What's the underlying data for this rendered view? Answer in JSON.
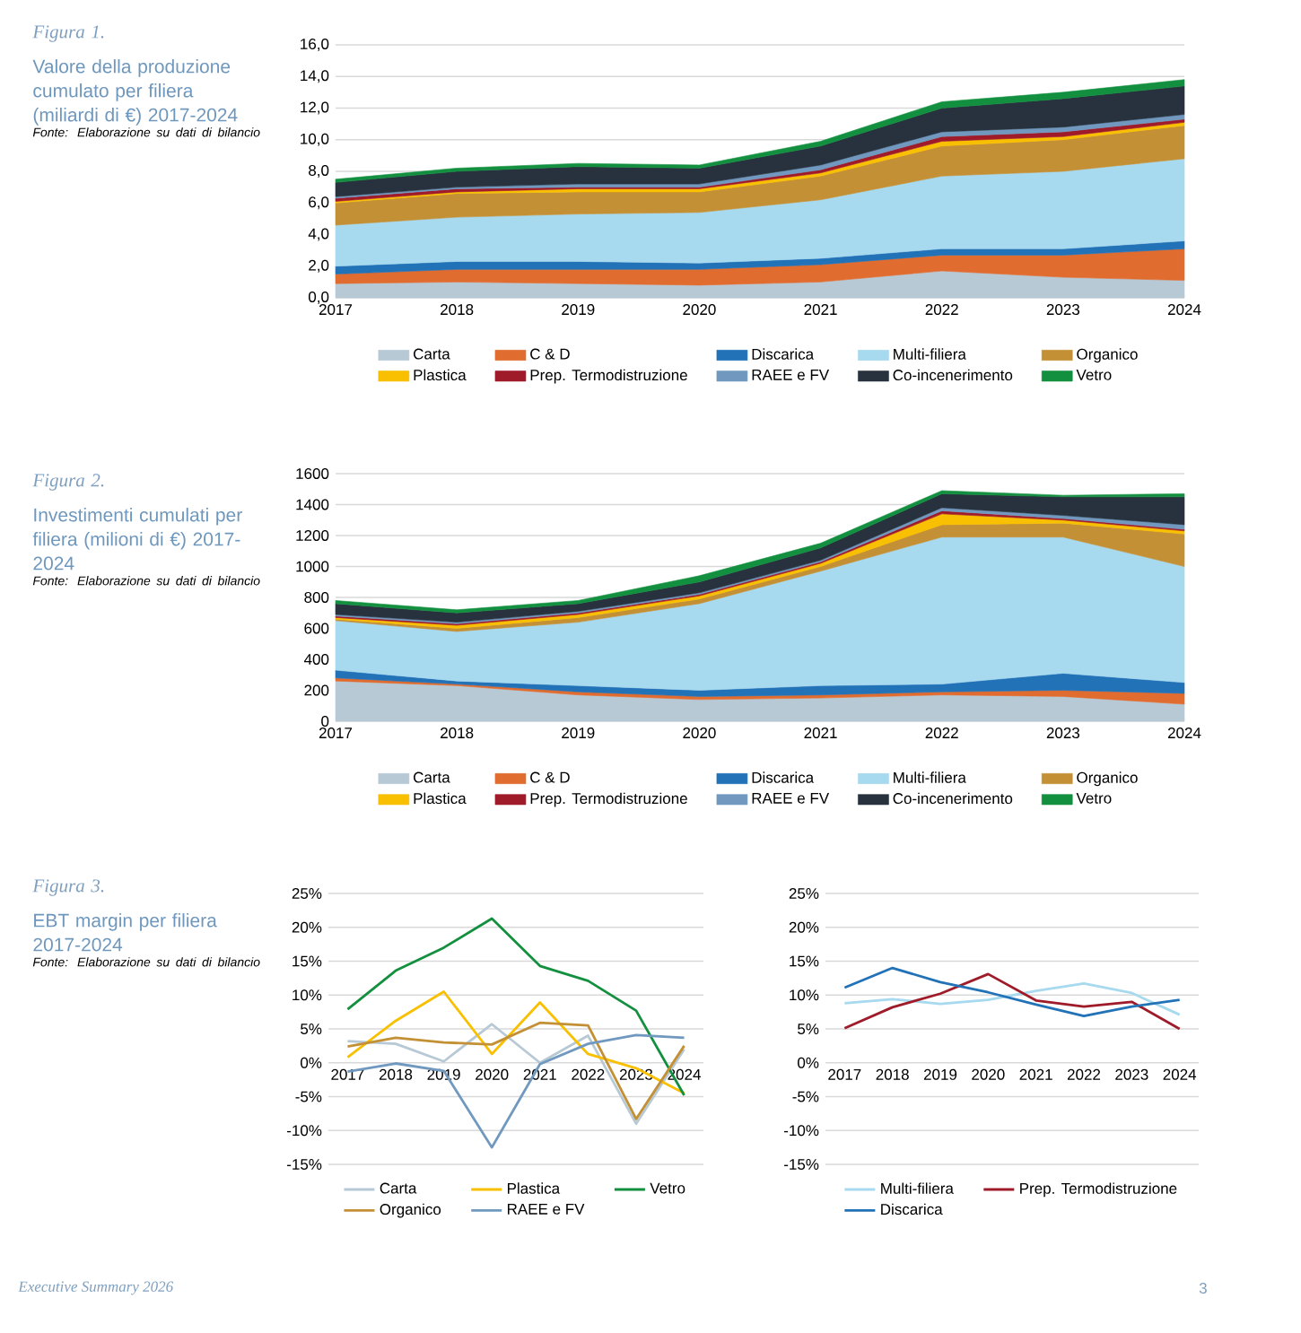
{
  "chart_data": [
    {
      "type": "area",
      "stacked": true,
      "title": "Valore della produzione cumulato per filiera (miliardi di €)  2017-2024",
      "annotations": [
        "Figura 1.",
        "Fonte: Elaborazione su dati di bilancio"
      ],
      "categories": [
        "2017",
        "2018",
        "2019",
        "2020",
        "2021",
        "2022",
        "2023",
        "2024"
      ],
      "ylim": [
        0,
        16
      ],
      "yticks": [
        {
          "value": 0,
          "label": "0,0"
        },
        {
          "value": 2,
          "label": "2,0"
        },
        {
          "value": 4,
          "label": "4,0"
        },
        {
          "value": 6,
          "label": "6,0"
        },
        {
          "value": 8,
          "label": "8,0"
        },
        {
          "value": 10,
          "label": "10,0"
        },
        {
          "value": 12,
          "label": "12,0"
        },
        {
          "value": 14,
          "label": "14,0"
        },
        {
          "value": 16,
          "label": "16,0"
        }
      ],
      "grid": "y",
      "legend": "bottom",
      "series": [
        {
          "name": "Carta",
          "color": "#b8c9d6",
          "values": [
            0.9,
            1.0,
            0.9,
            0.8,
            1.0,
            1.7,
            1.3,
            1.1
          ]
        },
        {
          "name": "C & D",
          "color": "#e06c2f",
          "values": [
            0.6,
            0.8,
            0.9,
            1.0,
            1.1,
            1.0,
            1.4,
            2.0
          ]
        },
        {
          "name": "Discarica",
          "color": "#2272b8",
          "values": [
            0.5,
            0.5,
            0.5,
            0.4,
            0.4,
            0.4,
            0.4,
            0.5
          ]
        },
        {
          "name": "Multi-filiera",
          "color": "#a7d9ef",
          "values": [
            2.6,
            2.8,
            3.0,
            3.2,
            3.7,
            4.6,
            4.9,
            5.2
          ]
        },
        {
          "name": "Organico",
          "color": "#c49035",
          "values": [
            1.4,
            1.5,
            1.4,
            1.3,
            1.5,
            1.9,
            2.0,
            2.1
          ]
        },
        {
          "name": "Plastica",
          "color": "#f8c000",
          "values": [
            0.1,
            0.1,
            0.2,
            0.2,
            0.2,
            0.3,
            0.2,
            0.2
          ]
        },
        {
          "name": "Prep. Termodistruzione",
          "color": "#a01b2a",
          "values": [
            0.2,
            0.2,
            0.1,
            0.1,
            0.2,
            0.3,
            0.3,
            0.2
          ]
        },
        {
          "name": "RAEE e FV",
          "color": "#7199bf",
          "values": [
            0.1,
            0.1,
            0.2,
            0.2,
            0.3,
            0.3,
            0.3,
            0.3
          ]
        },
        {
          "name": "Co-incenerimento",
          "color": "#27323e",
          "values": [
            0.9,
            1.0,
            1.1,
            1.0,
            1.2,
            1.5,
            1.8,
            1.8
          ]
        },
        {
          "name": "Vetro",
          "color": "#13903f",
          "values": [
            0.2,
            0.2,
            0.2,
            0.2,
            0.3,
            0.4,
            0.4,
            0.4
          ]
        }
      ]
    },
    {
      "type": "area",
      "stacked": true,
      "title": "Investimenti cumulati per filiera (milioni di €) 2017-2024",
      "annotations": [
        "Figura 2.",
        "Fonte: Elaborazione su dati di bilancio"
      ],
      "categories": [
        "2017",
        "2018",
        "2019",
        "2020",
        "2021",
        "2022",
        "2023",
        "2024"
      ],
      "ylim": [
        0,
        1600
      ],
      "yticks": [
        0,
        200,
        400,
        600,
        800,
        1000,
        1200,
        1400,
        1600
      ],
      "grid": "y",
      "legend": "bottom",
      "series": [
        {
          "name": "Carta",
          "color": "#b8c9d6",
          "values": [
            260,
            230,
            170,
            140,
            150,
            170,
            160,
            110
          ]
        },
        {
          "name": "C & D",
          "color": "#e06c2f",
          "values": [
            20,
            10,
            20,
            20,
            20,
            20,
            40,
            70
          ]
        },
        {
          "name": "Discarica",
          "color": "#2272b8",
          "values": [
            50,
            20,
            40,
            40,
            60,
            50,
            110,
            70
          ]
        },
        {
          "name": "Multi-filiera",
          "color": "#a7d9ef",
          "values": [
            320,
            320,
            410,
            560,
            740,
            950,
            880,
            750
          ]
        },
        {
          "name": "Organico",
          "color": "#c49035",
          "values": [
            10,
            20,
            30,
            30,
            30,
            80,
            90,
            210
          ]
        },
        {
          "name": "Plastica",
          "color": "#f8c000",
          "values": [
            10,
            20,
            20,
            20,
            20,
            70,
            20,
            20
          ]
        },
        {
          "name": "Prep. Termodistruzione",
          "color": "#a01b2a",
          "values": [
            10,
            10,
            10,
            10,
            10,
            20,
            10,
            10
          ]
        },
        {
          "name": "RAEE e FV",
          "color": "#7199bf",
          "values": [
            10,
            10,
            10,
            10,
            10,
            20,
            20,
            30
          ]
        },
        {
          "name": "Co-incenerimento",
          "color": "#27323e",
          "values": [
            70,
            60,
            50,
            70,
            80,
            90,
            120,
            180
          ]
        },
        {
          "name": "Vetro",
          "color": "#13903f",
          "values": [
            20,
            20,
            20,
            40,
            30,
            20,
            10,
            20
          ]
        }
      ]
    },
    {
      "type": "line",
      "title": "EBT margin per filiera 2017-2024",
      "annotations": [
        "Figura 3.",
        "Fonte: Elaborazione su dati di bilancio"
      ],
      "categories": [
        "2017",
        "2018",
        "2019",
        "2020",
        "2021",
        "2022",
        "2023",
        "2024"
      ],
      "ylim": [
        -15,
        25
      ],
      "yticks": [
        {
          "value": -15,
          "label": "-15%"
        },
        {
          "value": -10,
          "label": "-10%"
        },
        {
          "value": -5,
          "label": "-5%"
        },
        {
          "value": 0,
          "label": "0%"
        },
        {
          "value": 5,
          "label": "5%"
        },
        {
          "value": 10,
          "label": "10%"
        },
        {
          "value": 15,
          "label": "15%"
        },
        {
          "value": 20,
          "label": "20%"
        },
        {
          "value": 25,
          "label": "25%"
        }
      ],
      "grid": "y",
      "legend": "bottom",
      "line_style": "solid",
      "series": [
        {
          "name": "Carta",
          "color": "#b8c9d6",
          "values": [
            3.2,
            2.8,
            0.2,
            5.7,
            0.0,
            4.0,
            -9.0,
            2.0
          ]
        },
        {
          "name": "Plastica",
          "color": "#f8c000",
          "values": [
            0.8,
            6.2,
            10.5,
            1.3,
            8.9,
            1.3,
            -0.8,
            -4.5
          ]
        },
        {
          "name": "Vetro",
          "color": "#13903f",
          "values": [
            7.9,
            13.6,
            17.0,
            21.3,
            14.3,
            12.1,
            7.7,
            -4.8
          ]
        },
        {
          "name": "Organico",
          "color": "#c49035",
          "values": [
            2.4,
            3.7,
            3.0,
            2.7,
            5.9,
            5.5,
            -8.3,
            2.5
          ]
        },
        {
          "name": "RAEE e FV",
          "color": "#7199bf",
          "values": [
            -1.3,
            -0.1,
            -1.2,
            -12.5,
            -0.2,
            2.8,
            4.1,
            3.7
          ]
        }
      ]
    },
    {
      "type": "line",
      "annotations": [
        "Executive Summary 2026",
        "3"
      ],
      "categories": [
        "2017",
        "2018",
        "2019",
        "2020",
        "2021",
        "2022",
        "2023",
        "2024"
      ],
      "ylim": [
        -15,
        25
      ],
      "yticks": [
        {
          "value": -15,
          "label": "-15%"
        },
        {
          "value": -10,
          "label": "-10%"
        },
        {
          "value": -5,
          "label": "-5%"
        },
        {
          "value": 0,
          "label": "0%"
        },
        {
          "value": 5,
          "label": "5%"
        },
        {
          "value": 10,
          "label": "10%"
        },
        {
          "value": 15,
          "label": "15%"
        },
        {
          "value": 20,
          "label": "20%"
        },
        {
          "value": 25,
          "label": "25%"
        }
      ],
      "grid": "y",
      "legend": "bottom",
      "line_style": "solid",
      "series": [
        {
          "name": "Multi-filiera",
          "color": "#a7d9ef",
          "values": [
            8.8,
            9.4,
            8.7,
            9.3,
            10.6,
            11.7,
            10.3,
            7.1
          ]
        },
        {
          "name": "Prep. Termodistruzione",
          "color": "#a01b2a",
          "values": [
            5.1,
            8.2,
            10.2,
            13.1,
            9.2,
            8.3,
            9.0,
            5.0
          ]
        },
        {
          "name": "Discarica",
          "color": "#2272b8",
          "values": [
            11.1,
            14.0,
            11.9,
            10.4,
            8.6,
            6.9,
            8.3,
            9.3
          ]
        }
      ]
    }
  ]
}
